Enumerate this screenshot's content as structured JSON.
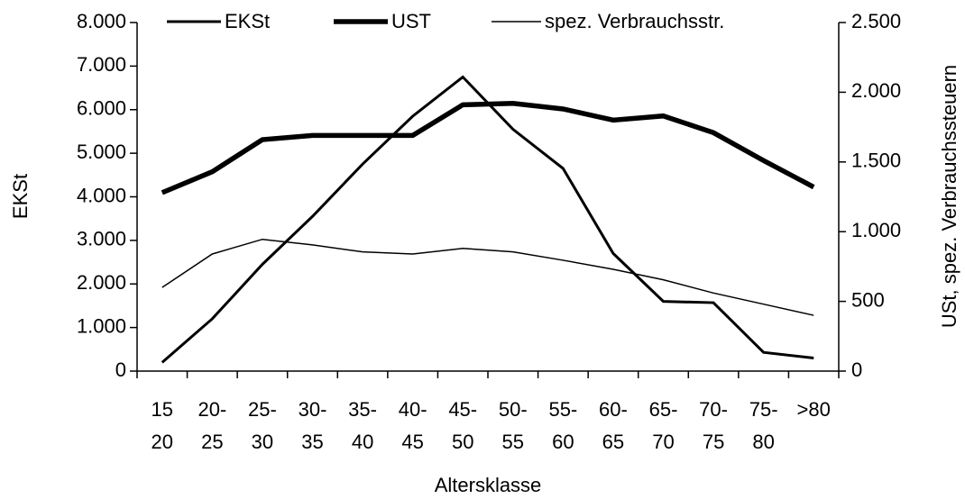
{
  "chart_data": {
    "type": "line",
    "x_label": "Altersklasse",
    "y_label": "EKSt",
    "y2_label": "USt, spez. Verbrauchssteuern",
    "categories": [
      [
        "15",
        "20"
      ],
      [
        "20-",
        "25"
      ],
      [
        "25-",
        "30"
      ],
      [
        "30-",
        "35"
      ],
      [
        "35-",
        "40"
      ],
      [
        "40-",
        "45"
      ],
      [
        "45-",
        "50"
      ],
      [
        "50-",
        "55"
      ],
      [
        "55-",
        "60"
      ],
      [
        "60-",
        "65"
      ],
      [
        "65-",
        "70"
      ],
      [
        "70-",
        "75"
      ],
      [
        "75-",
        "80"
      ],
      [
        ">80"
      ]
    ],
    "series": [
      {
        "name": "EKSt",
        "color": "#000000",
        "width": 3,
        "axis": "y",
        "values": [
          200,
          1200,
          2450,
          3550,
          4750,
          5850,
          6750,
          5550,
          4650,
          2700,
          1600,
          1570,
          430,
          300
        ]
      },
      {
        "name": "UST",
        "color": "#000000",
        "width": 5.5,
        "axis": "y2",
        "values": [
          1280,
          1430,
          1660,
          1690,
          1690,
          1690,
          1910,
          1920,
          1880,
          1800,
          1830,
          1710,
          1510,
          1320
        ]
      },
      {
        "name": "spez. Verbrauchsstr.",
        "color": "#000000",
        "width": 1.5,
        "axis": "y2",
        "values": [
          600,
          840,
          945,
          905,
          855,
          840,
          880,
          855,
          795,
          730,
          655,
          560,
          480,
          400
        ]
      }
    ],
    "ylim": [
      0,
      8000
    ],
    "yticks": [
      {
        "value": 0,
        "label": "0"
      },
      {
        "value": 1000,
        "label": "1.000"
      },
      {
        "value": 2000,
        "label": "2.000"
      },
      {
        "value": 3000,
        "label": "3.000"
      },
      {
        "value": 4000,
        "label": "4.000"
      },
      {
        "value": 5000,
        "label": "5.000"
      },
      {
        "value": 6000,
        "label": "6.000"
      },
      {
        "value": 7000,
        "label": "7.000"
      },
      {
        "value": 8000,
        "label": "8.000"
      }
    ],
    "y2lim": [
      0,
      2500
    ],
    "y2ticks": [
      {
        "value": 0,
        "label": "0"
      },
      {
        "value": 500,
        "label": "500"
      },
      {
        "value": 1000,
        "label": "1.000"
      },
      {
        "value": 1500,
        "label": "1.500"
      },
      {
        "value": 2000,
        "label": "2.000"
      },
      {
        "value": 2500,
        "label": "2.500"
      }
    ],
    "legend": "top"
  }
}
